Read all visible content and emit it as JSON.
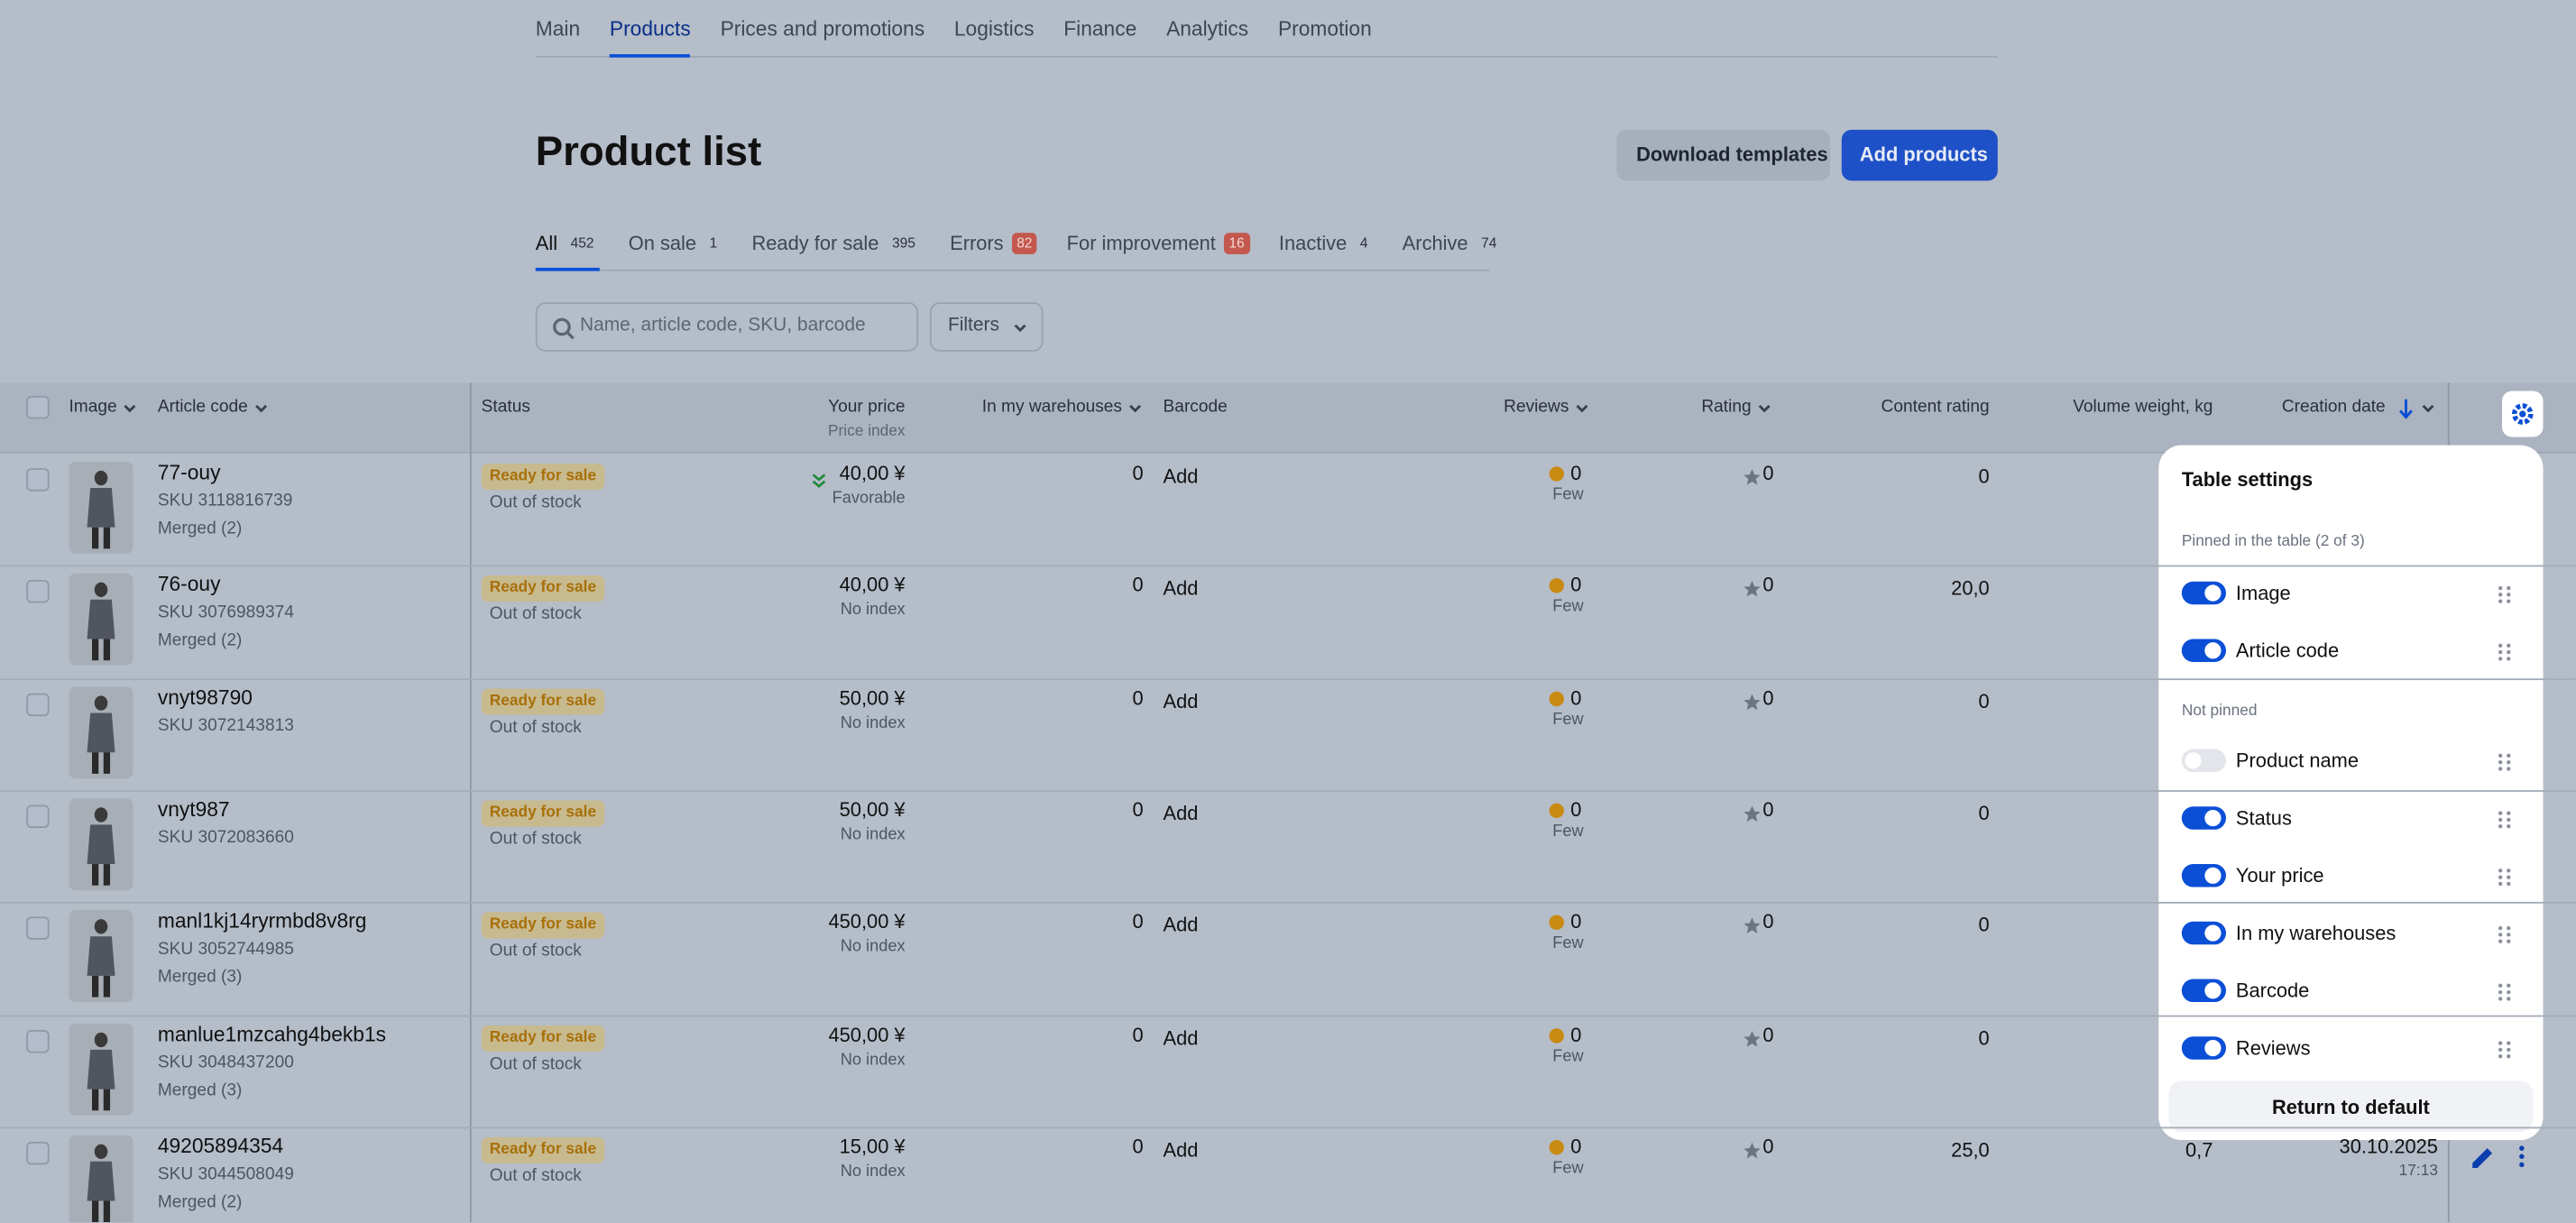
{
  "nav": {
    "items": [
      "Main",
      "Products",
      "Prices and promotions",
      "Logistics",
      "Finance",
      "Analytics",
      "Promotion"
    ],
    "active": 1
  },
  "header": {
    "title": "Product list",
    "buttons": [
      "Download templates",
      "Add products"
    ]
  },
  "tabs": {
    "active": 0,
    "items": [
      {
        "label": "All",
        "count": 452
      },
      {
        "label": "On sale",
        "count": 1
      },
      {
        "label": "Ready for sale",
        "count": 395
      },
      {
        "label": "Errors",
        "count": 82,
        "alert": true
      },
      {
        "label": "For improvement",
        "count": 16,
        "alert": true
      },
      {
        "label": "Inactive",
        "count": 4
      },
      {
        "label": "Archive",
        "count": 74
      }
    ]
  },
  "search": {
    "placeholder": "Name, article code, SKU, barcode",
    "filters": "Filters"
  },
  "table": {
    "columns": [
      "Image",
      "Article code",
      "Status",
      "Your price",
      "In my warehouses",
      "Barcode",
      "Reviews",
      "Rating",
      "Content rating",
      "Volume weight, kg",
      "Creation date"
    ],
    "price_sub": "Price index",
    "rows": [
      {
        "article": "77-ouy",
        "sku": "SKU 3118816739",
        "merged": "Merged (2)",
        "status": "Ready for sale",
        "stock": "Out of stock",
        "price": "40,00 ¥",
        "price_note": "Favorable",
        "warehouses": 0,
        "barcode": "Add",
        "reviews": 0,
        "reviews_note": "Few",
        "rating": 0,
        "content": "0"
      },
      {
        "article": "76-ouy",
        "sku": "SKU 3076989374",
        "merged": "Merged (2)",
        "status": "Ready for sale",
        "stock": "Out of stock",
        "price": "40,00 ¥",
        "price_note": "No index",
        "warehouses": 0,
        "barcode": "Add",
        "reviews": 0,
        "reviews_note": "Few",
        "rating": 0,
        "content": "20,0"
      },
      {
        "article": "vnyt98790",
        "sku": "SKU 3072143813",
        "status": "Ready for sale",
        "stock": "Out of stock",
        "price": "50,00 ¥",
        "price_note": "No index",
        "warehouses": 0,
        "barcode": "Add",
        "reviews": 0,
        "reviews_note": "Few",
        "rating": 0,
        "content": "0"
      },
      {
        "article": "vnyt987",
        "sku": "SKU 3072083660",
        "status": "Ready for sale",
        "stock": "Out of stock",
        "price": "50,00 ¥",
        "price_note": "No index",
        "warehouses": 0,
        "barcode": "Add",
        "reviews": 0,
        "reviews_note": "Few",
        "rating": 0,
        "content": "0"
      },
      {
        "article": "manl1kj14ryrmbd8v8rg",
        "sku": "SKU 3052744985",
        "merged": "Merged (3)",
        "status": "Ready for sale",
        "stock": "Out of stock",
        "price": "450,00 ¥",
        "price_note": "No index",
        "warehouses": 0,
        "barcode": "Add",
        "reviews": 0,
        "reviews_note": "Few",
        "rating": 0,
        "content": "0"
      },
      {
        "article": "manlue1mzcahg4bekb1s",
        "sku": "SKU 3048437200",
        "merged": "Merged (3)",
        "status": "Ready for sale",
        "stock": "Out of stock",
        "price": "450,00 ¥",
        "price_note": "No index",
        "warehouses": 0,
        "barcode": "Add",
        "reviews": 0,
        "reviews_note": "Few",
        "rating": 0,
        "content": "0"
      },
      {
        "article": "49205894354",
        "sku": "SKU 3044508049",
        "merged": "Merged (2)",
        "status": "Ready for sale",
        "stock": "Out of stock",
        "price": "15,00 ¥",
        "price_note": "No index",
        "warehouses": 0,
        "barcode": "Add",
        "reviews": 0,
        "reviews_note": "Few",
        "rating": 0,
        "content": "25,0",
        "volume": "0,7",
        "date": "30.10.2025",
        "time": "17:13"
      }
    ]
  },
  "settings": {
    "title": "Table settings",
    "pinned_label": "Pinned in the table (2 of 3)",
    "pinned": [
      {
        "label": "Image",
        "on": true
      },
      {
        "label": "Article code",
        "on": true
      }
    ],
    "not_pinned_label": "Not pinned",
    "not_pinned": [
      {
        "label": "Product name",
        "on": false
      },
      {
        "label": "Status",
        "on": true
      },
      {
        "label": "Your price",
        "on": true
      },
      {
        "label": "In my warehouses",
        "on": true
      },
      {
        "label": "Barcode",
        "on": true
      },
      {
        "label": "Reviews",
        "on": true
      }
    ],
    "reset": "Return to default"
  }
}
